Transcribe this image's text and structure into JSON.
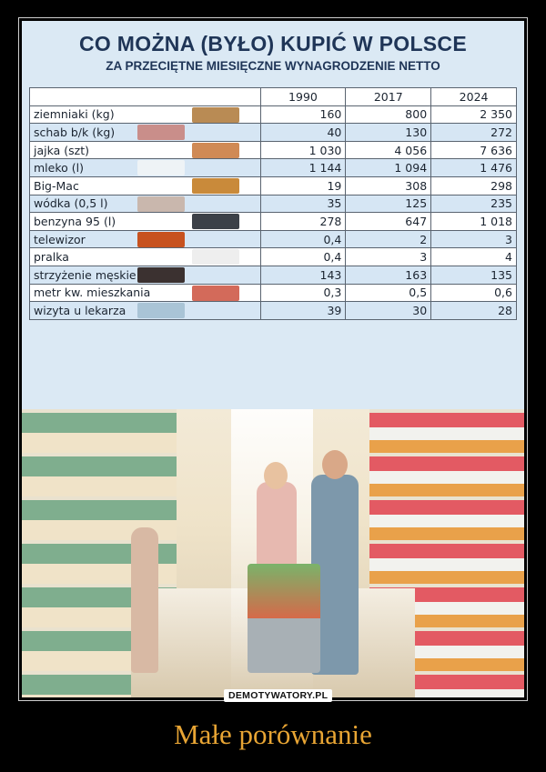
{
  "title": "CO MOŻNA (BYŁO) KUPIĆ W POLSCE",
  "subtitle": "ZA PRZECIĘTNE MIESIĘCZNE WYNAGRODZENIE NETTO",
  "table": {
    "headers": [
      "",
      "1990",
      "2017",
      "2024"
    ],
    "rows": [
      {
        "label": "ziemniaki (kg)",
        "v1990": "160",
        "v2017": "800",
        "v2024": "2 350",
        "thumb": "#b98b54"
      },
      {
        "label": "schab b/k (kg)",
        "v1990": "40",
        "v2017": "130",
        "v2024": "272",
        "thumb": "#c98e8a"
      },
      {
        "label": "jajka (szt)",
        "v1990": "1 030",
        "v2017": "4 056",
        "v2024": "7 636",
        "thumb": "#d08a55"
      },
      {
        "label": "mleko (l)",
        "v1990": "1 144",
        "v2017": "1 094",
        "v2024": "1 476",
        "thumb": "#eef3f6"
      },
      {
        "label": "Big-Mac",
        "v1990": "19",
        "v2017": "308",
        "v2024": "298",
        "thumb": "#c98a3a"
      },
      {
        "label": "wódka (0,5 l)",
        "v1990": "35",
        "v2017": "125",
        "v2024": "235",
        "thumb": "#c9b7ad"
      },
      {
        "label": "benzyna 95 (l)",
        "v1990": "278",
        "v2017": "647",
        "v2024": "1 018",
        "thumb": "#3c4148"
      },
      {
        "label": "telewizor",
        "v1990": "0,4",
        "v2017": "2",
        "v2024": "3",
        "thumb": "#c7521f"
      },
      {
        "label": "pralka",
        "v1990": "0,4",
        "v2017": "3",
        "v2024": "4",
        "thumb": "#eeeeee"
      },
      {
        "label": "strzyżenie męskie",
        "v1990": "143",
        "v2017": "163",
        "v2024": "135",
        "thumb": "#3b3130"
      },
      {
        "label": "metr kw. mieszkania",
        "v1990": "0,3",
        "v2017": "0,5",
        "v2024": "0,6",
        "thumb": "#d36a5a"
      },
      {
        "label": "wizyta u lekarza",
        "v1990": "39",
        "v2017": "30",
        "v2024": "28",
        "thumb": "#a9c4d6"
      }
    ]
  },
  "watermark": "DEMOTYWATORY.PL",
  "caption": "Małe porównanie",
  "colors": {
    "title": "#1f3557",
    "row_alt": "#d6e6f4",
    "caption": "#e8a534"
  }
}
